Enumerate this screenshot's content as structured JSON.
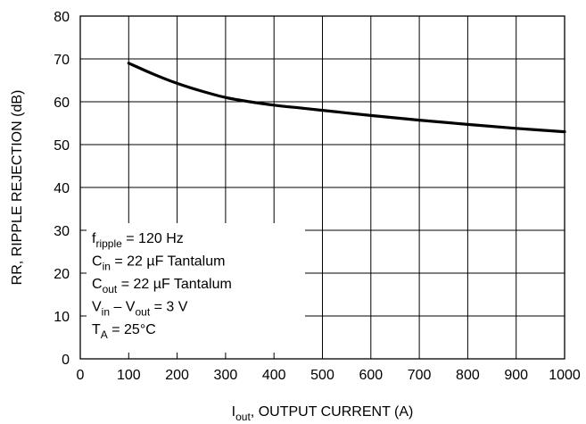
{
  "chart_data": {
    "type": "line",
    "xlabel": {
      "main": "I",
      "sub": "out",
      "rest": ", OUTPUT CURRENT (A)"
    },
    "ylabel": "RR, RIPPLE REJECTION (dB)",
    "xlim": [
      0,
      1000
    ],
    "ylim": [
      0,
      80
    ],
    "xticks": [
      0,
      100,
      200,
      300,
      400,
      500,
      600,
      700,
      800,
      900,
      1000
    ],
    "yticks": [
      0,
      10,
      20,
      30,
      40,
      50,
      60,
      70,
      80
    ],
    "grid": true,
    "series": [
      {
        "x": [
          100,
          150,
          200,
          250,
          300,
          350,
          400,
          450,
          500,
          600,
          700,
          800,
          900,
          1000
        ],
        "y": [
          69,
          66.5,
          64.3,
          62.5,
          61,
          60,
          59.2,
          58.6,
          58,
          56.8,
          55.7,
          54.7,
          53.8,
          53
        ]
      }
    ],
    "annotations": [
      {
        "main": "f",
        "sub": "ripple",
        "rest": " = 120 Hz"
      },
      {
        "main": "C",
        "sub": "in",
        "rest": " = 22 µF Tantalum"
      },
      {
        "main": "C",
        "sub": "out",
        "rest": " = 22 µF Tantalum"
      },
      {
        "main": "V",
        "sub": "in",
        "rest": " – V",
        "sub2": "out",
        "rest2": " = 3 V"
      },
      {
        "main": "T",
        "sub": "A",
        "rest": " = 25°C"
      }
    ]
  }
}
